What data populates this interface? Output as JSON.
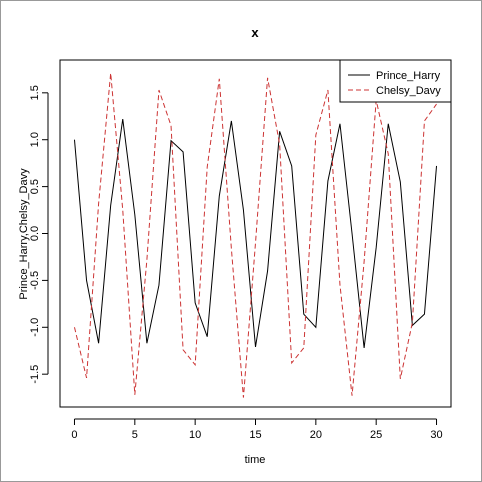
{
  "chart_data": {
    "type": "line",
    "title": "x",
    "xlabel": "time",
    "ylabel": "Prince_Harry,Chelsy_Davy",
    "xlim": [
      -1.2,
      31.2
    ],
    "ylim": [
      -1.85,
      1.85
    ],
    "x_ticks": [
      0,
      5,
      10,
      15,
      20,
      25,
      30
    ],
    "y_ticks": [
      -1.5,
      -1.0,
      -0.5,
      0.0,
      0.5,
      1.0,
      1.5
    ],
    "x_tick_labels": [
      "0",
      "5",
      "10",
      "15",
      "20",
      "25",
      "30"
    ],
    "y_tick_labels": [
      "-1.5",
      "-1.0",
      "-0.5",
      "0.0",
      "0.5",
      "1.0",
      "1.5"
    ],
    "grid": false,
    "legend_position": "top-right",
    "x": [
      0,
      1,
      2,
      3,
      4,
      5,
      6,
      7,
      8,
      9,
      10,
      11,
      12,
      13,
      14,
      15,
      16,
      17,
      18,
      19,
      20,
      21,
      22,
      23,
      24,
      25,
      26,
      27,
      28,
      29,
      30
    ],
    "series": [
      {
        "name": "Prince_Harry",
        "color": "#000000",
        "dash": "solid",
        "values": [
          1.0,
          -0.5,
          -1.17,
          0.3,
          1.22,
          0.2,
          -1.17,
          -0.55,
          0.99,
          0.87,
          -0.74,
          -1.1,
          0.4,
          1.2,
          0.25,
          -1.21,
          -0.4,
          1.09,
          0.72,
          -0.86,
          -1.0,
          0.56,
          1.17,
          0.0,
          -1.22,
          -0.15,
          1.17,
          0.55,
          -0.98,
          -0.86,
          0.72
        ]
      },
      {
        "name": "Chelsy_Davy",
        "color": "#cc3333",
        "dash": "dashed",
        "values": [
          -1.0,
          -1.54,
          0.32,
          1.71,
          0.25,
          -1.72,
          -0.28,
          1.53,
          1.15,
          -1.24,
          -1.4,
          0.71,
          1.65,
          -0.16,
          -1.75,
          -0.1,
          1.66,
          0.95,
          -1.38,
          -1.22,
          1.05,
          1.53,
          -0.55,
          -1.73,
          -0.3,
          1.42,
          0.85,
          -1.55,
          -0.95,
          1.2,
          1.38
        ]
      }
    ]
  }
}
